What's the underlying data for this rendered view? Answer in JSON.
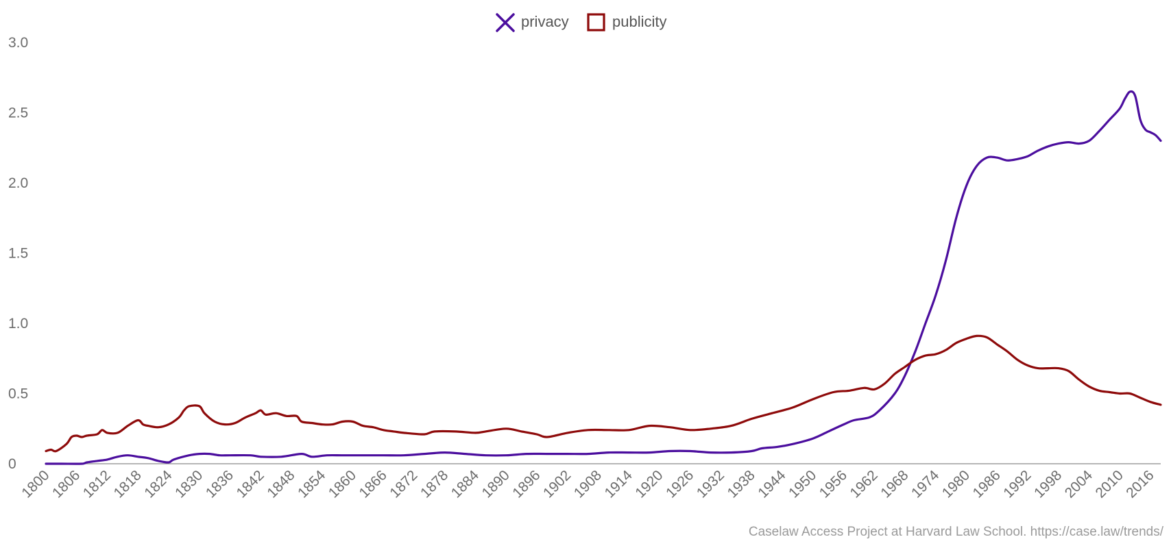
{
  "chart_data": {
    "type": "line",
    "title": "",
    "xlabel": "",
    "ylabel": "",
    "xlim": [
      1800,
      2018
    ],
    "ylim": [
      0,
      3.0
    ],
    "y_ticks": [
      {
        "value": 0,
        "label": "0"
      },
      {
        "value": 0.5,
        "label": "0.5"
      },
      {
        "value": 1.0,
        "label": "1.0"
      },
      {
        "value": 1.5,
        "label": "1.5"
      },
      {
        "value": 2.0,
        "label": "2.0"
      },
      {
        "value": 2.5,
        "label": "2.5"
      },
      {
        "value": 3.0,
        "label": "3.0"
      }
    ],
    "x_ticks": [
      "1800",
      "1806",
      "1812",
      "1818",
      "1824",
      "1830",
      "1836",
      "1842",
      "1848",
      "1854",
      "1860",
      "1866",
      "1872",
      "1878",
      "1884",
      "1890",
      "1896",
      "1902",
      "1908",
      "1914",
      "1920",
      "1926",
      "1932",
      "1938",
      "1944",
      "1950",
      "1956",
      "1962",
      "1968",
      "1974",
      "1980",
      "1986",
      "1992",
      "1998",
      "2004",
      "2010",
      "2016"
    ],
    "grid": false,
    "legend_position": "top-center",
    "series": [
      {
        "name": "privacy",
        "color": "#4b0e9e",
        "marker": "x",
        "points": [
          [
            1800,
            0
          ],
          [
            1803,
            0
          ],
          [
            1807,
            0
          ],
          [
            1808,
            0.01
          ],
          [
            1810,
            0.02
          ],
          [
            1812,
            0.03
          ],
          [
            1814,
            0.05
          ],
          [
            1816,
            0.06
          ],
          [
            1818,
            0.05
          ],
          [
            1820,
            0.04
          ],
          [
            1822,
            0.02
          ],
          [
            1824,
            0.01
          ],
          [
            1825,
            0.03
          ],
          [
            1828,
            0.06
          ],
          [
            1830,
            0.07
          ],
          [
            1832,
            0.07
          ],
          [
            1834,
            0.06
          ],
          [
            1836,
            0.06
          ],
          [
            1840,
            0.06
          ],
          [
            1842,
            0.05
          ],
          [
            1846,
            0.05
          ],
          [
            1850,
            0.07
          ],
          [
            1852,
            0.05
          ],
          [
            1855,
            0.06
          ],
          [
            1858,
            0.06
          ],
          [
            1862,
            0.06
          ],
          [
            1866,
            0.06
          ],
          [
            1870,
            0.06
          ],
          [
            1874,
            0.07
          ],
          [
            1878,
            0.08
          ],
          [
            1882,
            0.07
          ],
          [
            1886,
            0.06
          ],
          [
            1890,
            0.06
          ],
          [
            1894,
            0.07
          ],
          [
            1898,
            0.07
          ],
          [
            1902,
            0.07
          ],
          [
            1906,
            0.07
          ],
          [
            1910,
            0.08
          ],
          [
            1914,
            0.08
          ],
          [
            1918,
            0.08
          ],
          [
            1922,
            0.09
          ],
          [
            1926,
            0.09
          ],
          [
            1930,
            0.08
          ],
          [
            1934,
            0.08
          ],
          [
            1938,
            0.09
          ],
          [
            1940,
            0.11
          ],
          [
            1943,
            0.12
          ],
          [
            1946,
            0.14
          ],
          [
            1950,
            0.18
          ],
          [
            1953,
            0.23
          ],
          [
            1956,
            0.28
          ],
          [
            1958,
            0.31
          ],
          [
            1961,
            0.33
          ],
          [
            1963,
            0.38
          ],
          [
            1966,
            0.5
          ],
          [
            1968,
            0.63
          ],
          [
            1970,
            0.8
          ],
          [
            1972,
            1.0
          ],
          [
            1974,
            1.2
          ],
          [
            1976,
            1.45
          ],
          [
            1978,
            1.75
          ],
          [
            1980,
            1.98
          ],
          [
            1982,
            2.12
          ],
          [
            1984,
            2.18
          ],
          [
            1986,
            2.18
          ],
          [
            1988,
            2.16
          ],
          [
            1990,
            2.17
          ],
          [
            1992,
            2.19
          ],
          [
            1994,
            2.23
          ],
          [
            1996,
            2.26
          ],
          [
            1998,
            2.28
          ],
          [
            2000,
            2.29
          ],
          [
            2002,
            2.28
          ],
          [
            2004,
            2.3
          ],
          [
            2006,
            2.37
          ],
          [
            2008,
            2.45
          ],
          [
            2010,
            2.53
          ],
          [
            2011,
            2.6
          ],
          [
            2012,
            2.65
          ],
          [
            2013,
            2.62
          ],
          [
            2014,
            2.45
          ],
          [
            2015,
            2.38
          ],
          [
            2016,
            2.36
          ],
          [
            2017,
            2.34
          ],
          [
            2018,
            2.3
          ]
        ]
      },
      {
        "name": "publicity",
        "color": "#8e0a0a",
        "marker": "square",
        "points": [
          [
            1800,
            0.09
          ],
          [
            1801,
            0.1
          ],
          [
            1802,
            0.09
          ],
          [
            1804,
            0.14
          ],
          [
            1805,
            0.19
          ],
          [
            1806,
            0.2
          ],
          [
            1807,
            0.19
          ],
          [
            1808,
            0.2
          ],
          [
            1810,
            0.21
          ],
          [
            1811,
            0.24
          ],
          [
            1812,
            0.22
          ],
          [
            1814,
            0.22
          ],
          [
            1816,
            0.27
          ],
          [
            1818,
            0.31
          ],
          [
            1819,
            0.28
          ],
          [
            1820,
            0.27
          ],
          [
            1822,
            0.26
          ],
          [
            1824,
            0.28
          ],
          [
            1826,
            0.33
          ],
          [
            1827,
            0.38
          ],
          [
            1828,
            0.41
          ],
          [
            1830,
            0.41
          ],
          [
            1831,
            0.36
          ],
          [
            1833,
            0.3
          ],
          [
            1835,
            0.28
          ],
          [
            1837,
            0.29
          ],
          [
            1839,
            0.33
          ],
          [
            1841,
            0.36
          ],
          [
            1842,
            0.38
          ],
          [
            1843,
            0.35
          ],
          [
            1845,
            0.36
          ],
          [
            1847,
            0.34
          ],
          [
            1849,
            0.34
          ],
          [
            1850,
            0.3
          ],
          [
            1852,
            0.29
          ],
          [
            1854,
            0.28
          ],
          [
            1856,
            0.28
          ],
          [
            1858,
            0.3
          ],
          [
            1860,
            0.3
          ],
          [
            1862,
            0.27
          ],
          [
            1864,
            0.26
          ],
          [
            1866,
            0.24
          ],
          [
            1868,
            0.23
          ],
          [
            1870,
            0.22
          ],
          [
            1874,
            0.21
          ],
          [
            1876,
            0.23
          ],
          [
            1880,
            0.23
          ],
          [
            1884,
            0.22
          ],
          [
            1886,
            0.23
          ],
          [
            1890,
            0.25
          ],
          [
            1893,
            0.23
          ],
          [
            1896,
            0.21
          ],
          [
            1898,
            0.19
          ],
          [
            1902,
            0.22
          ],
          [
            1906,
            0.24
          ],
          [
            1910,
            0.24
          ],
          [
            1914,
            0.24
          ],
          [
            1918,
            0.27
          ],
          [
            1922,
            0.26
          ],
          [
            1926,
            0.24
          ],
          [
            1930,
            0.25
          ],
          [
            1934,
            0.27
          ],
          [
            1938,
            0.32
          ],
          [
            1942,
            0.36
          ],
          [
            1946,
            0.4
          ],
          [
            1950,
            0.46
          ],
          [
            1954,
            0.51
          ],
          [
            1957,
            0.52
          ],
          [
            1960,
            0.54
          ],
          [
            1962,
            0.53
          ],
          [
            1964,
            0.57
          ],
          [
            1966,
            0.64
          ],
          [
            1968,
            0.69
          ],
          [
            1970,
            0.74
          ],
          [
            1972,
            0.77
          ],
          [
            1974,
            0.78
          ],
          [
            1976,
            0.81
          ],
          [
            1978,
            0.86
          ],
          [
            1980,
            0.89
          ],
          [
            1982,
            0.91
          ],
          [
            1984,
            0.9
          ],
          [
            1986,
            0.85
          ],
          [
            1988,
            0.8
          ],
          [
            1990,
            0.74
          ],
          [
            1992,
            0.7
          ],
          [
            1994,
            0.68
          ],
          [
            1996,
            0.68
          ],
          [
            1998,
            0.68
          ],
          [
            2000,
            0.66
          ],
          [
            2002,
            0.6
          ],
          [
            2004,
            0.55
          ],
          [
            2006,
            0.52
          ],
          [
            2008,
            0.51
          ],
          [
            2010,
            0.5
          ],
          [
            2012,
            0.5
          ],
          [
            2014,
            0.47
          ],
          [
            2016,
            0.44
          ],
          [
            2018,
            0.42
          ]
        ]
      }
    ]
  },
  "credit": "Caselaw Access Project at Harvard Law School. https://case.law/trends/"
}
